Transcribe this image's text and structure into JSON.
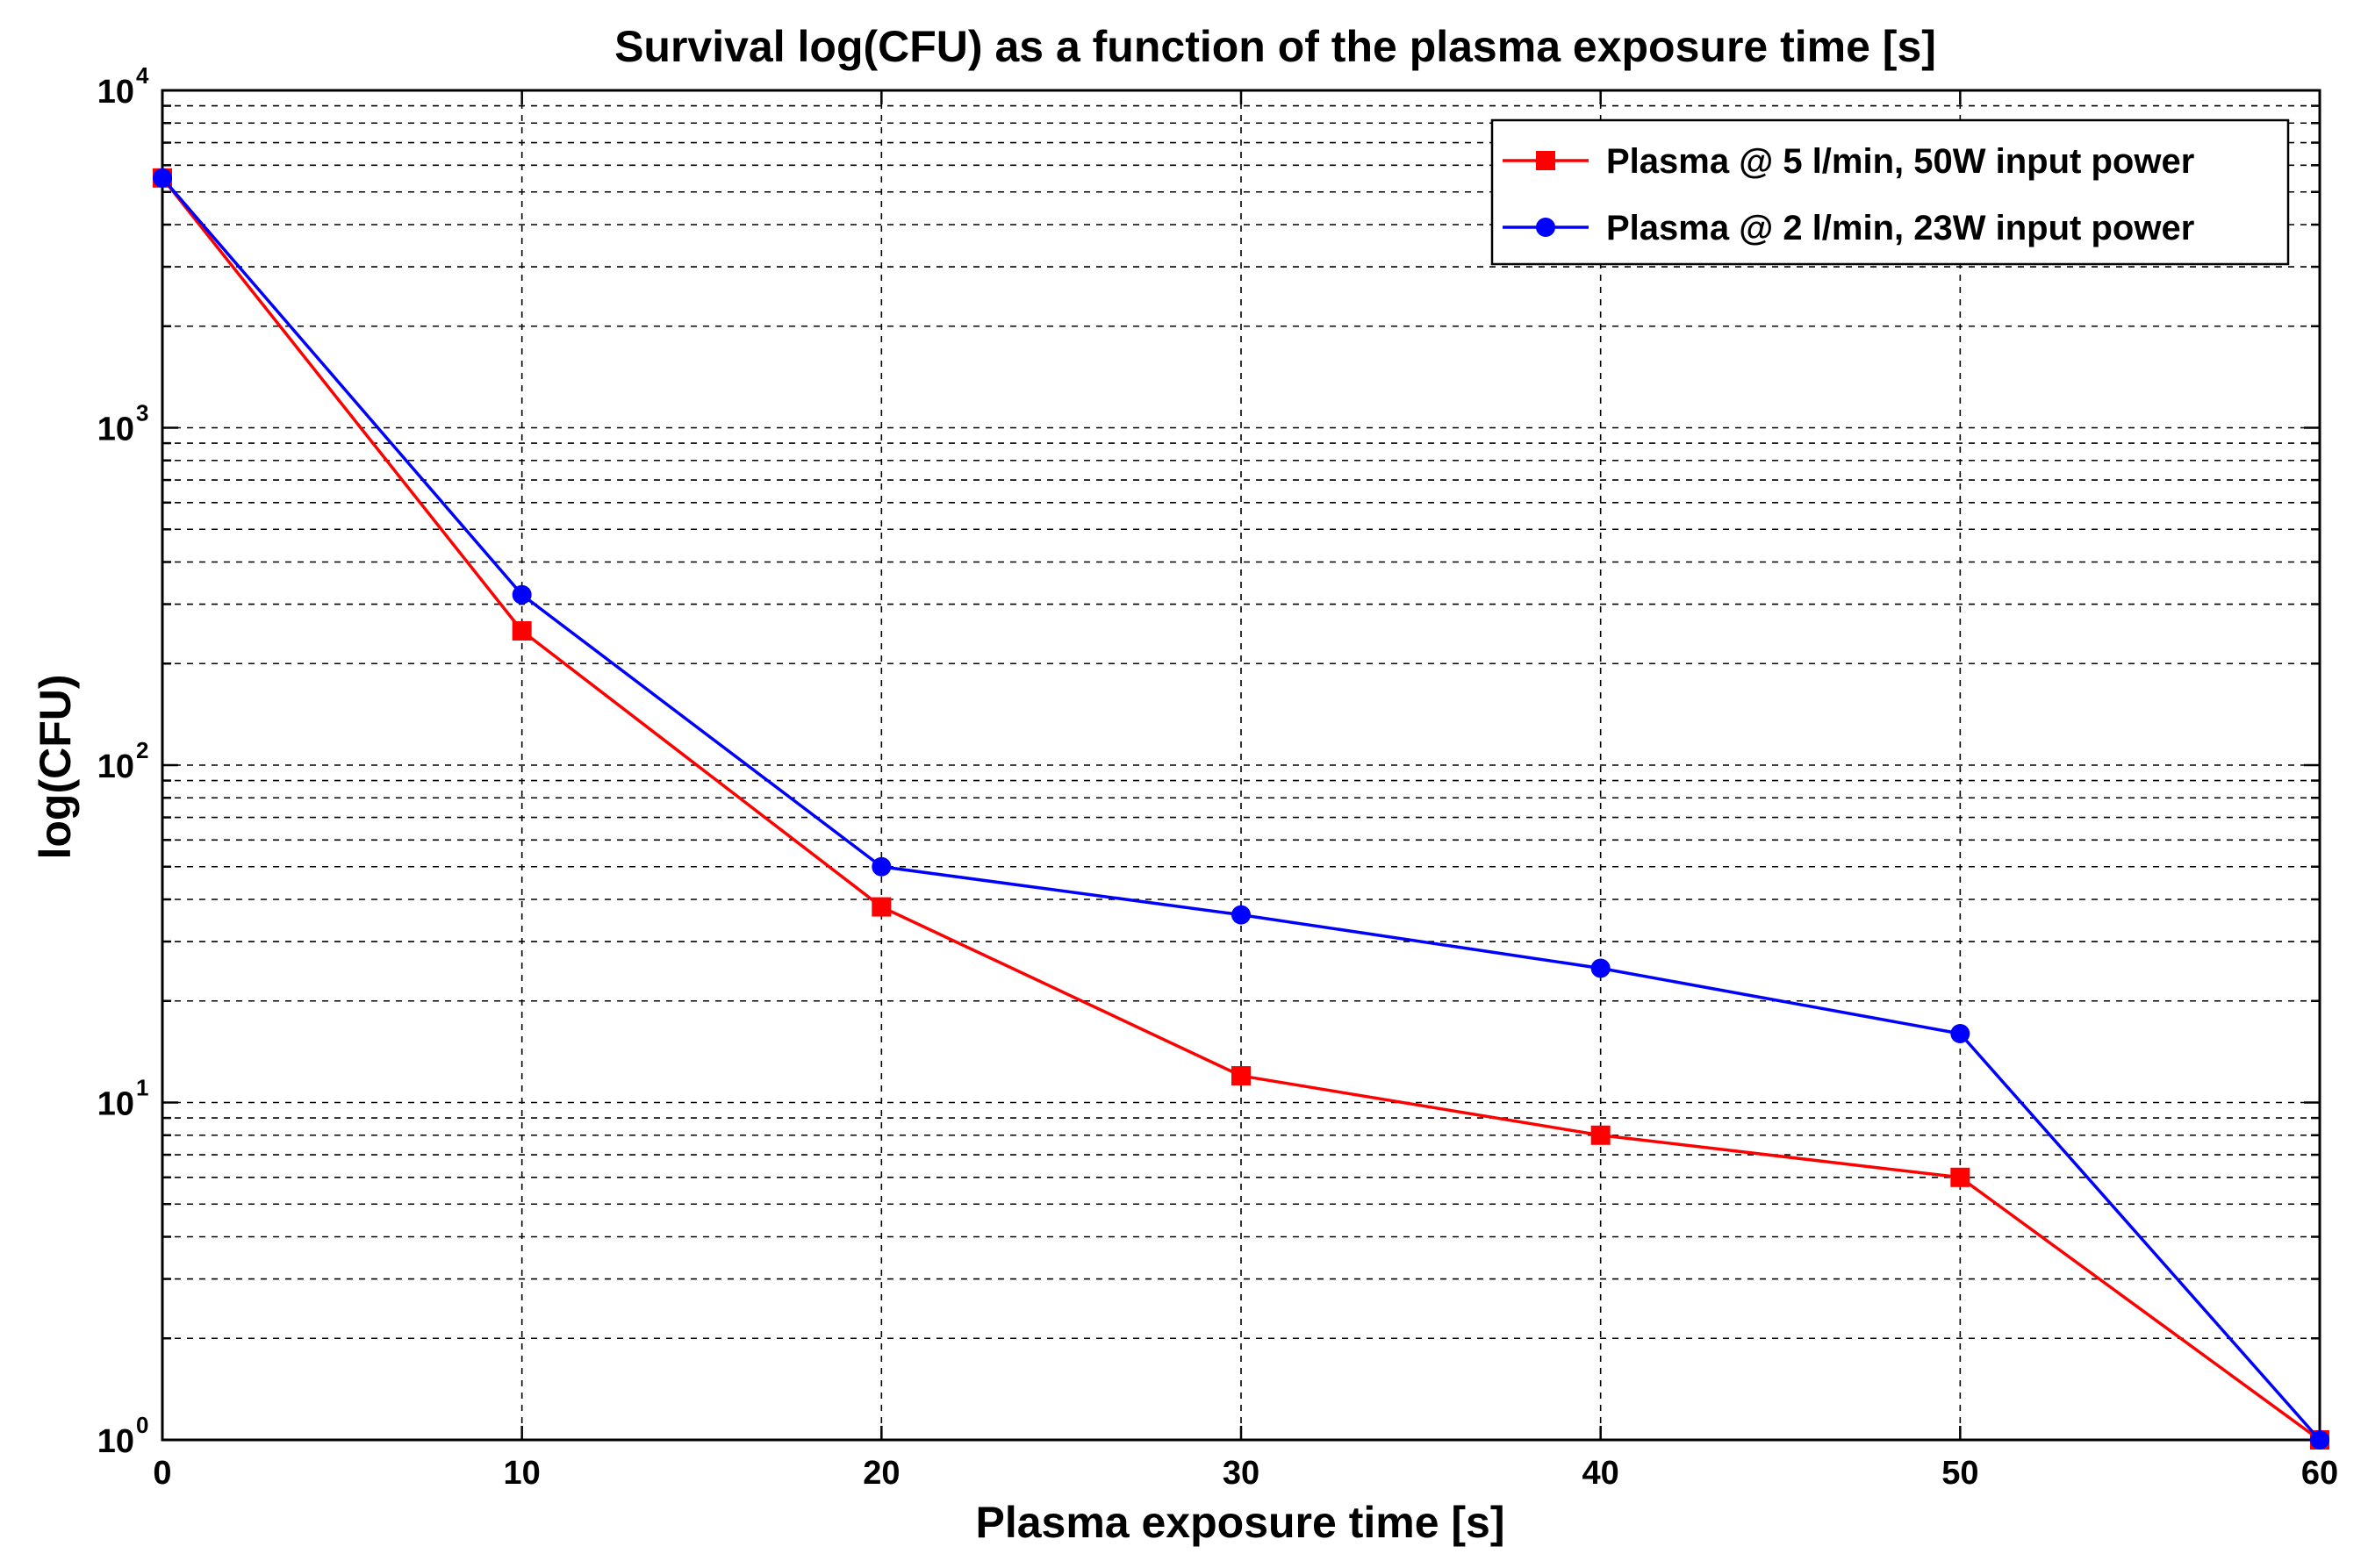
{
  "chart_data": {
    "type": "line",
    "title": "Survival log(CFU) as a function of the plasma exposure time [s]",
    "xlabel": "Plasma exposure time [s]",
    "ylabel": "log(CFU)",
    "yscale": "log",
    "xlim": [
      0,
      60
    ],
    "ylim": [
      1,
      10000
    ],
    "x_ticks": [
      "0",
      "10",
      "20",
      "30",
      "40",
      "50",
      "60"
    ],
    "y_ticks": [
      {
        "base": "10",
        "exp": "0"
      },
      {
        "base": "10",
        "exp": "1"
      },
      {
        "base": "10",
        "exp": "2"
      },
      {
        "base": "10",
        "exp": "3"
      },
      {
        "base": "10",
        "exp": "4"
      }
    ],
    "grid": true,
    "legend_position": "top-right",
    "series": [
      {
        "name": "Plasma @ 5 l/min, 50W input power",
        "color": "#ff0000",
        "marker": "square",
        "x": [
          0,
          10,
          20,
          30,
          40,
          50,
          60
        ],
        "y": [
          5500,
          250,
          38,
          12,
          8,
          6,
          1
        ]
      },
      {
        "name": "Plasma @ 2 l/min, 23W input power",
        "color": "#0000ff",
        "marker": "circle",
        "x": [
          0,
          10,
          20,
          30,
          40,
          50,
          60
        ],
        "y": [
          5500,
          320,
          50,
          36,
          25,
          16,
          1
        ]
      }
    ]
  }
}
